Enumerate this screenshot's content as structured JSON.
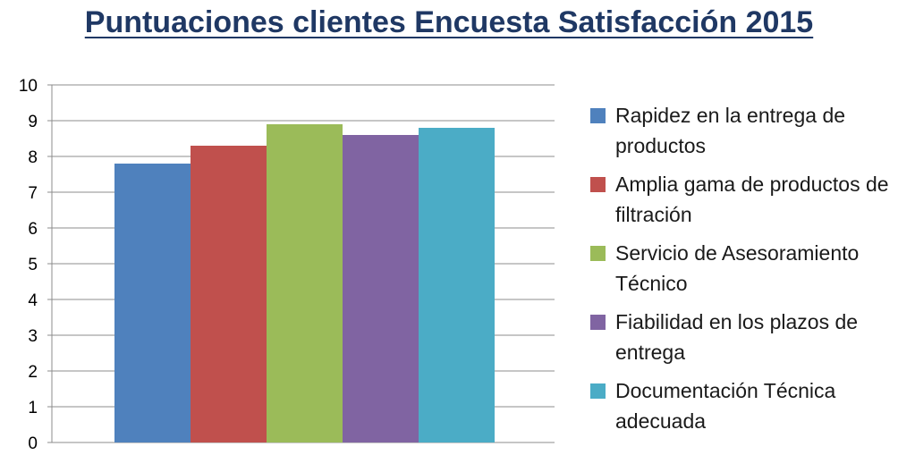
{
  "chart_data": {
    "type": "bar",
    "title": "Puntuaciones clientes  Encuesta Satisfacción 2015",
    "xlabel": "",
    "ylabel": "",
    "ylim": [
      0,
      10
    ],
    "y_ticks": [
      "0",
      "1",
      "2",
      "3",
      "4",
      "5",
      "6",
      "7",
      "8",
      "9",
      "10"
    ],
    "grid": true,
    "legend_position": "right",
    "series": [
      {
        "name": "Rapidez en la entrega de productos",
        "value": 7.8,
        "color": "#4F81BD"
      },
      {
        "name": "Amplia gama de productos de filtración",
        "value": 8.3,
        "color": "#C0504D"
      },
      {
        "name": "Servicio de Asesoramiento Técnico",
        "value": 8.9,
        "color": "#9BBB59"
      },
      {
        "name": "Fiabilidad en los plazos de entrega",
        "value": 8.6,
        "color": "#8064A2"
      },
      {
        "name": "Documentación Técnica adecuada",
        "value": 8.8,
        "color": "#4BACC6"
      }
    ]
  }
}
